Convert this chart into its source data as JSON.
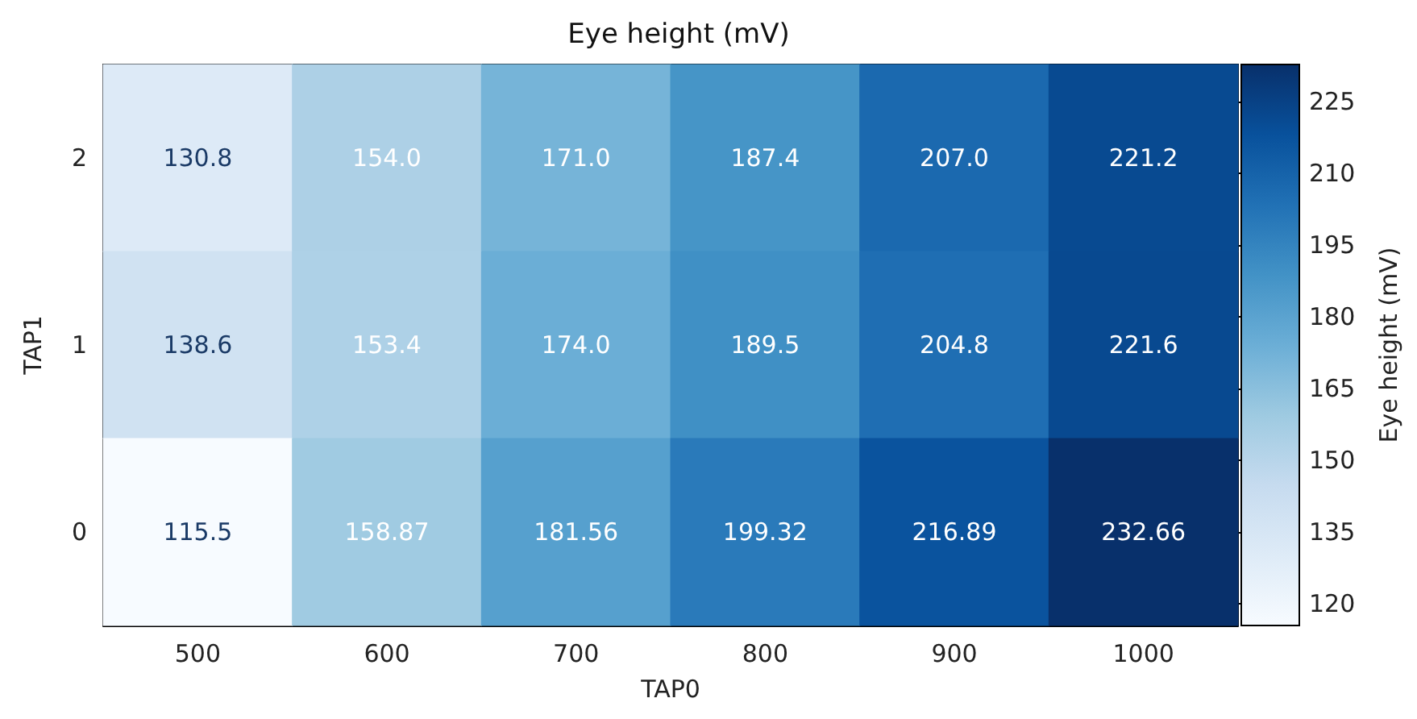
{
  "chart_data": {
    "type": "heatmap",
    "title": "Eye height (mV)",
    "xlabel": "TAP0",
    "ylabel": "TAP1",
    "clabel": "Eye height (mV)",
    "categories": [
      "500",
      "600",
      "700",
      "800",
      "900",
      "1000"
    ],
    "y_categories": [
      "2",
      "1",
      "0"
    ],
    "cells": [
      [
        130.8,
        154.0,
        171.0,
        187.4,
        207.0,
        221.2
      ],
      [
        138.6,
        153.4,
        174.0,
        189.5,
        204.8,
        221.6
      ],
      [
        115.5,
        158.87,
        181.56,
        199.32,
        216.89,
        232.66
      ]
    ],
    "cell_labels": [
      [
        "130.8",
        "154.0",
        "171.0",
        "187.4",
        "207.0",
        "221.2"
      ],
      [
        "138.6",
        "153.4",
        "174.0",
        "189.5",
        "204.8",
        "221.6"
      ],
      [
        "115.5",
        "158.87",
        "181.56",
        "199.32",
        "216.89",
        "232.66"
      ]
    ],
    "clim": [
      115.5,
      232.66
    ],
    "cticks": [
      120,
      135,
      150,
      165,
      180,
      195,
      210,
      225
    ],
    "colors": [
      "#f7fbff",
      "#deebf7",
      "#c6dbef",
      "#9ecae1",
      "#6baed6",
      "#4292c6",
      "#2171b5",
      "#08519c",
      "#08306b"
    ]
  }
}
